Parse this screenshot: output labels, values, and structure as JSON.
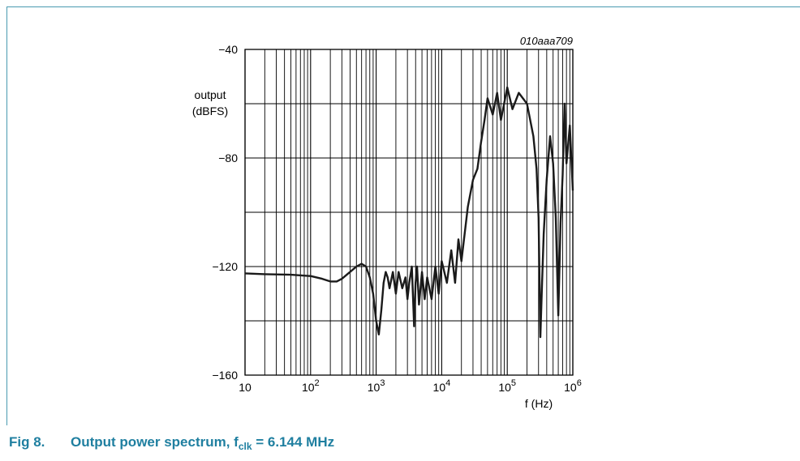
{
  "figure": {
    "code": "010aaa709",
    "fig_label": "Fig 8.",
    "caption_pre": "Output power spectrum, f",
    "caption_sub": "clk",
    "caption_post": " = 6.144 MHz",
    "frame_color": "#4a9ab0",
    "caption_color": "#1f7fa0"
  },
  "chart_data": {
    "type": "line",
    "title": "",
    "xlabel": "f (Hz)",
    "ylabel": [
      "output",
      "(dBFS)"
    ],
    "xscale": "log",
    "xlim": [
      10,
      1000000
    ],
    "ylim": [
      -160,
      -40
    ],
    "grid": true,
    "x_ticks": [
      {
        "base": "10",
        "exp": ""
      },
      {
        "base": "10",
        "exp": "2"
      },
      {
        "base": "10",
        "exp": "3"
      },
      {
        "base": "10",
        "exp": "4"
      },
      {
        "base": "10",
        "exp": "5"
      },
      {
        "base": "10",
        "exp": "6"
      }
    ],
    "y_ticks": [
      "−40",
      "−80",
      "−120",
      "−160"
    ],
    "y_tick_values": [
      -40,
      -80,
      -120,
      -160
    ],
    "line_color": "#1a1a1a",
    "series": [
      {
        "x": [
          10,
          20,
          50,
          100,
          150,
          200,
          250,
          300,
          400,
          500,
          600,
          700,
          800,
          900,
          1000,
          1100,
          1200,
          1300,
          1400,
          1500,
          1600,
          1800,
          2000,
          2200,
          2500,
          2800,
          3000,
          3200,
          3500,
          3800,
          4000,
          4200,
          4500,
          5000,
          5500,
          6000,
          7000,
          8000,
          9000,
          10000,
          12000,
          14000,
          16000,
          18000,
          20000,
          25000,
          30000,
          35000,
          40000,
          45000,
          50000,
          60000,
          70000,
          80000,
          100000,
          120000,
          150000,
          200000,
          250000,
          280000,
          300000,
          320000,
          340000,
          360000,
          400000,
          450000,
          500000,
          550000,
          600000,
          650000,
          700000,
          750000,
          800000,
          900000,
          1000000
        ],
        "y": [
          -122.5,
          -122.8,
          -123,
          -123.5,
          -124.5,
          -125.5,
          -125.5,
          -124.5,
          -122,
          -120,
          -119,
          -120,
          -124,
          -130,
          -140,
          -145,
          -136,
          -126,
          -122,
          -124,
          -128,
          -122,
          -130,
          -122,
          -128,
          -124,
          -132,
          -126,
          -120,
          -142,
          -126,
          -120,
          -134,
          -122,
          -132,
          -124,
          -132,
          -120,
          -130,
          -118,
          -126,
          -114,
          -126,
          -110,
          -118,
          -98,
          -88,
          -84,
          -74,
          -66,
          -58,
          -64,
          -56,
          -66,
          -54,
          -62,
          -56,
          -60,
          -72,
          -84,
          -102,
          -146,
          -126,
          -108,
          -88,
          -72,
          -82,
          -102,
          -138,
          -104,
          -86,
          -60,
          -82,
          -68,
          -92
        ]
      }
    ]
  }
}
